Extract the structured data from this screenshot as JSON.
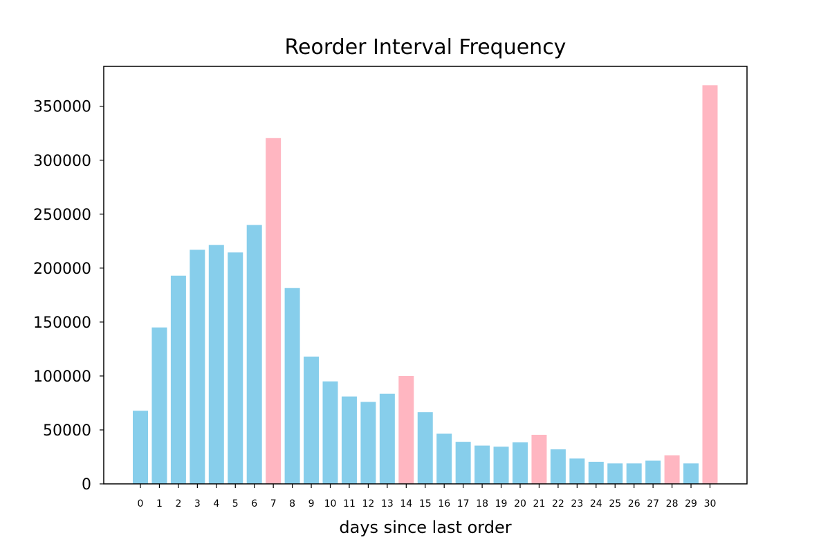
{
  "chart_data": {
    "type": "bar",
    "title": "Reorder Interval Frequency",
    "xlabel": "days since last order",
    "ylabel": "",
    "categories": [
      "0",
      "1",
      "2",
      "3",
      "4",
      "5",
      "6",
      "7",
      "8",
      "9",
      "10",
      "11",
      "12",
      "13",
      "14",
      "15",
      "16",
      "17",
      "18",
      "19",
      "20",
      "21",
      "22",
      "23",
      "24",
      "25",
      "26",
      "27",
      "28",
      "29",
      "30"
    ],
    "values": [
      67800,
      145000,
      193000,
      217000,
      221500,
      214500,
      240000,
      320500,
      181500,
      118000,
      95000,
      81000,
      76000,
      83500,
      100000,
      66500,
      46500,
      39000,
      35500,
      34500,
      38500,
      45500,
      32000,
      23500,
      20500,
      19000,
      19000,
      21500,
      26500,
      19000,
      369500
    ],
    "ylim": [
      0,
      387000
    ],
    "yticks": [
      0,
      50000,
      100000,
      150000,
      200000,
      250000,
      300000,
      350000
    ],
    "grid": false,
    "colors": {
      "default": "#87CEEB",
      "highlight": "#FFB6C1"
    },
    "highlight_categories": [
      "7",
      "14",
      "21",
      "28",
      "30"
    ]
  }
}
